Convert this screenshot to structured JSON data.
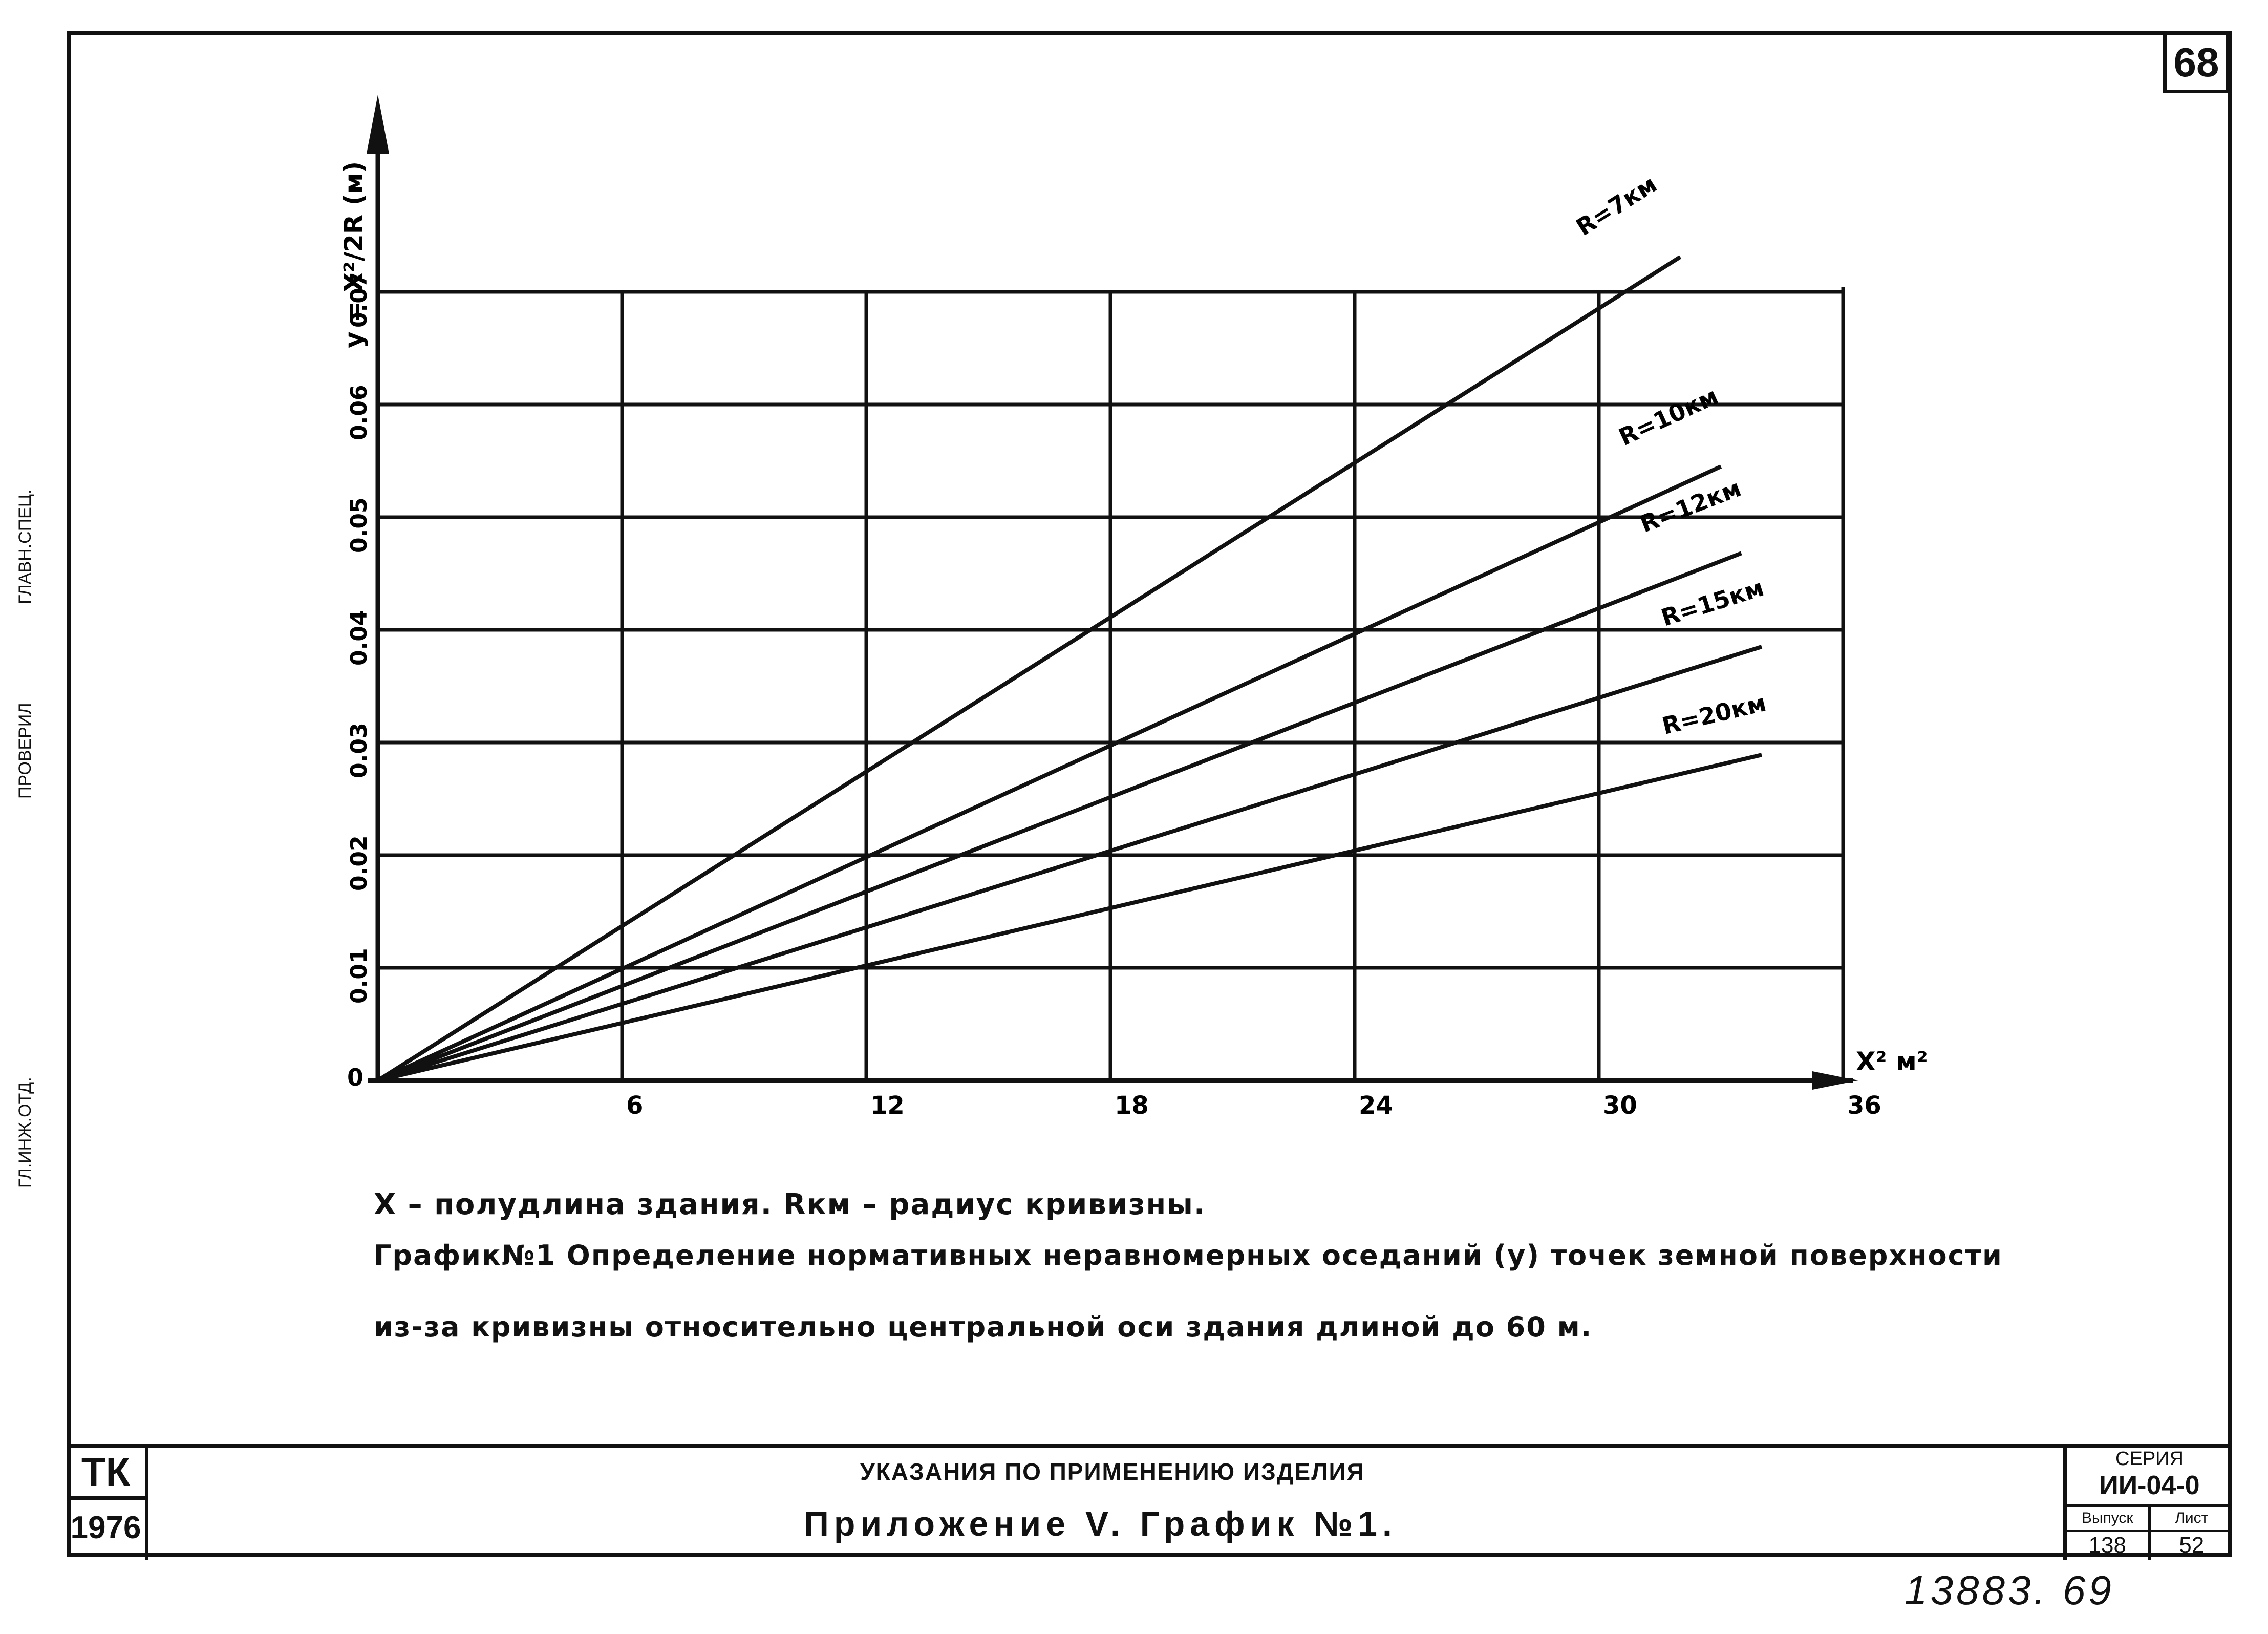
{
  "sheet_number": "68",
  "stamp_labels": [
    "ГЛ.ИНЖ.ОТД.",
    "ПРОВЕРИЛ",
    "ГЛАВН.СПЕЦ."
  ],
  "chart_data": {
    "type": "line",
    "title": "",
    "y_axis_label": "y = X²/2R (м)",
    "x_axis_label": "X² м²",
    "x_ticks": [
      6,
      12,
      18,
      24,
      30,
      36
    ],
    "y_ticks": [
      0.01,
      0.02,
      0.03,
      0.04,
      0.05,
      0.06,
      0.07
    ],
    "origin_label": "0",
    "xlim": [
      0,
      36
    ],
    "ylim": [
      0,
      0.07
    ],
    "grid": true,
    "series": [
      {
        "name": "R=7км",
        "x": [
          0,
          32
        ],
        "y": [
          0,
          0.0731
        ]
      },
      {
        "name": "R=10км",
        "x": [
          0,
          33
        ],
        "y": [
          0,
          0.0545
        ]
      },
      {
        "name": "R=12км",
        "x": [
          0,
          33.5
        ],
        "y": [
          0,
          0.0468
        ]
      },
      {
        "name": "R=15км",
        "x": [
          0,
          34
        ],
        "y": [
          0,
          0.0385
        ]
      },
      {
        "name": "R=20км",
        "x": [
          0,
          34
        ],
        "y": [
          0,
          0.0289
        ]
      }
    ]
  },
  "caption": {
    "line1": "X – полудлина здания.  Rкм – радиус кривизны.",
    "line2": "График№1 Определение нормативных неравномерных оседаний (y) точек земной поверхности",
    "line3": "из-за кривизны относительно центральной оси здания длиной до 60 м."
  },
  "title_block": {
    "org": "ТК",
    "year": "1976",
    "subtitle": "УКАЗАНИЯ ПО ПРИМЕНЕНИЮ ИЗДЕЛИЯ",
    "title": "Приложение V.   График №1.",
    "series_label": "СЕРИЯ",
    "series_value": "ИИ-04-0",
    "issue_label": "Выпуск",
    "issue_value": "138",
    "sheet_label": "Лист",
    "sheet_value": "52"
  },
  "inventory_number": "13883. 69"
}
